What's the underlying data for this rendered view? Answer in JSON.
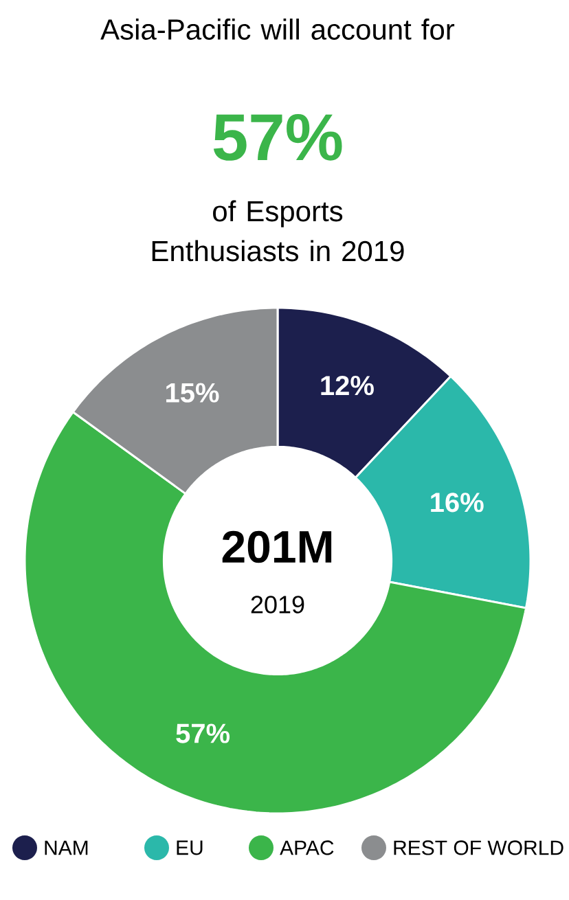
{
  "chart_data": {
    "type": "donut",
    "title": "Asia-Pacific will account for",
    "annotations": [
      "57%",
      "of Esports Enthusiasts in 2019",
      "201M",
      "2019"
    ],
    "categories": [
      "NAM",
      "EU",
      "APAC",
      "REST OF WORLD"
    ],
    "values": [
      12,
      16,
      57,
      15
    ],
    "colors": [
      "#1c1f4d",
      "#2bb8aa",
      "#3bb54a",
      "#8b8d8f"
    ],
    "value_labels": [
      "12%",
      "16%",
      "57%",
      "15%"
    ],
    "legend": "bottom"
  }
}
